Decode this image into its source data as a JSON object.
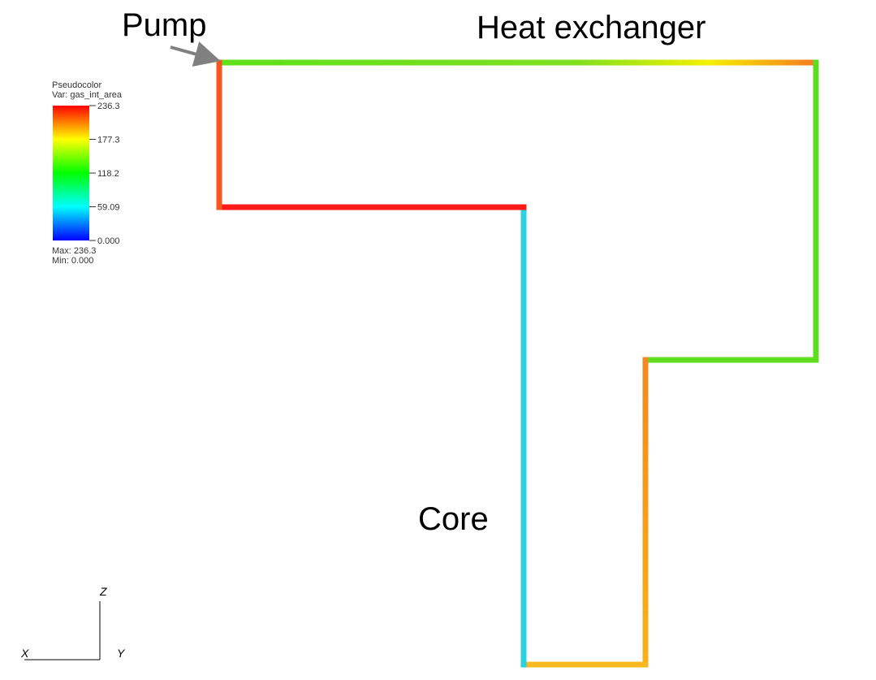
{
  "labels": {
    "pump": "Pump",
    "heat_exchanger": "Heat exchanger",
    "core": "Core"
  },
  "legend": {
    "title": "Pseudocolor",
    "variable": "Var: gas_int_area",
    "ticks": [
      "236.3",
      "177.3",
      "118.2",
      "59.09",
      "0.000"
    ],
    "max": "Max: 236.3",
    "min": "Min: 0.000"
  },
  "triad": {
    "z": "Z",
    "x": "X",
    "y": "Y"
  }
}
